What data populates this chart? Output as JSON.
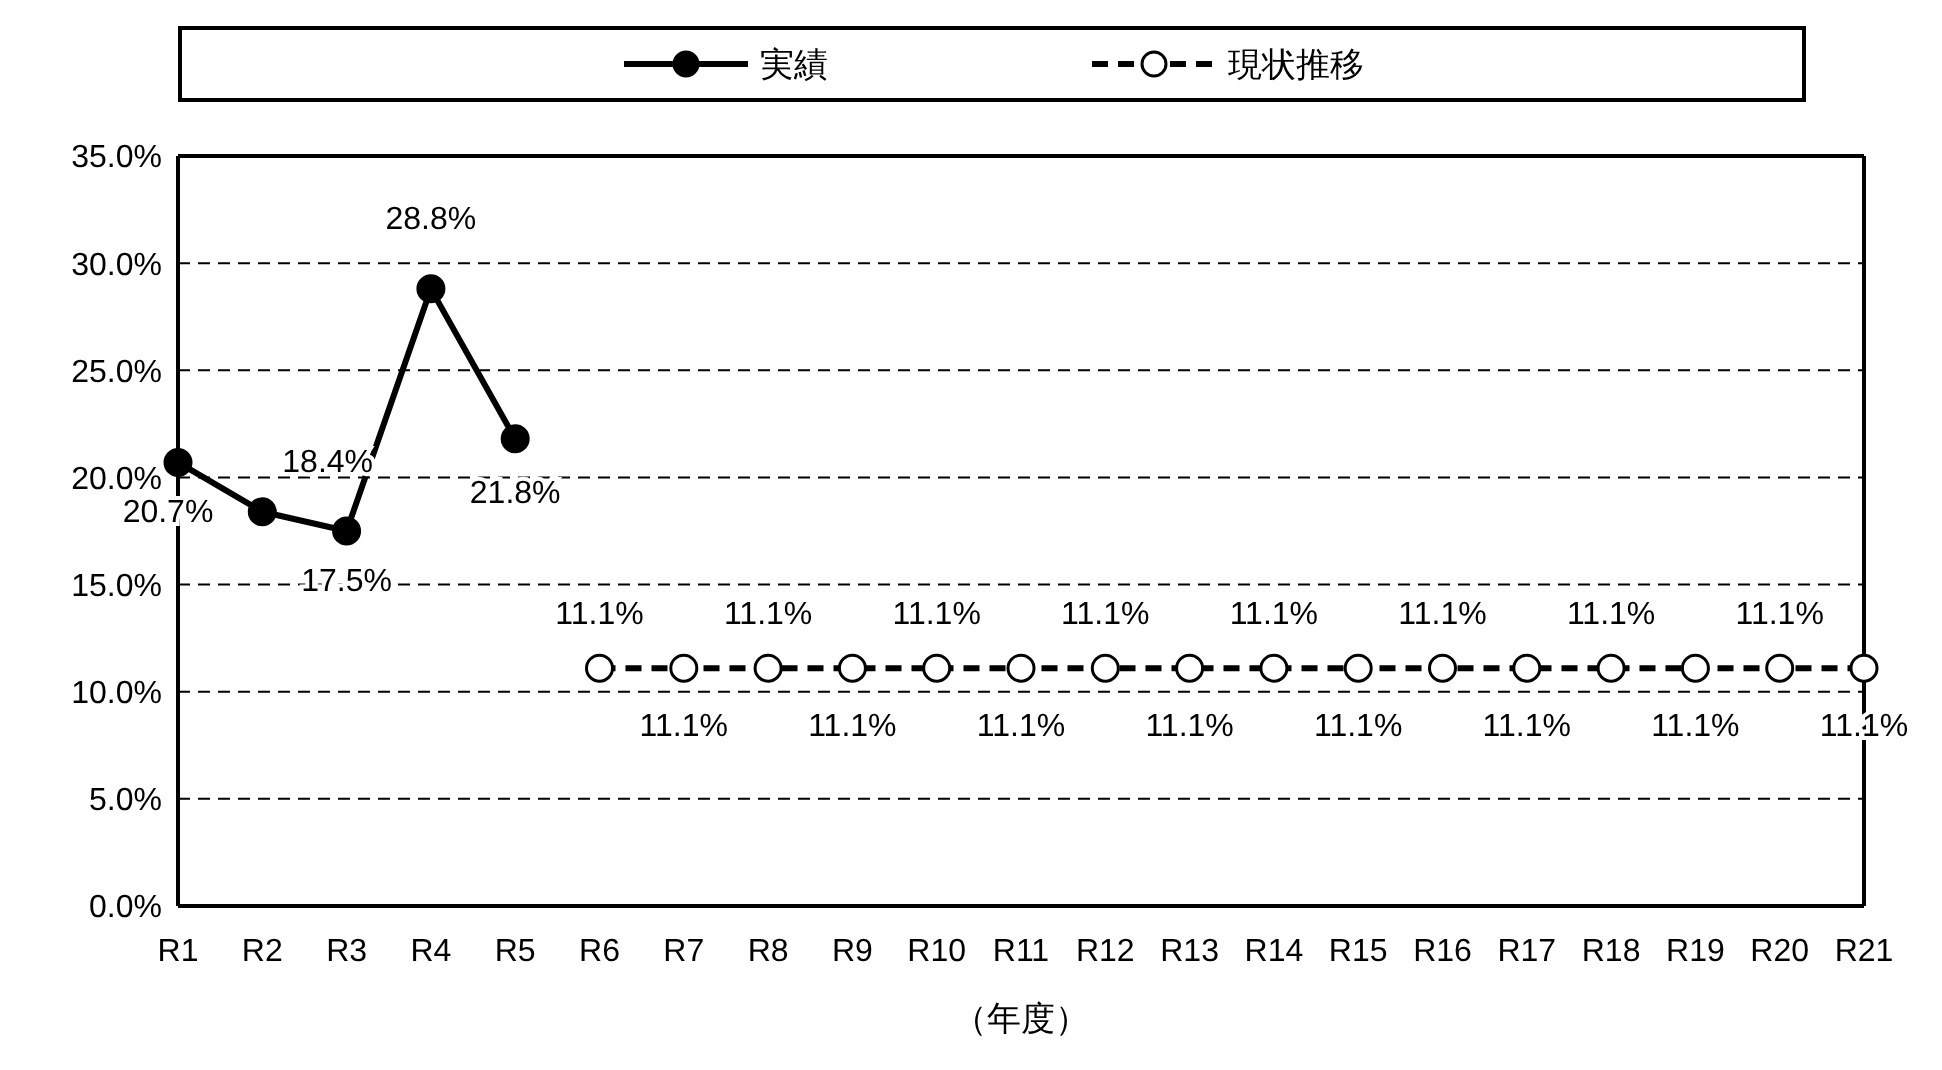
{
  "chart_data": {
    "type": "line",
    "xlabel": "（年度）",
    "categories": [
      "R1",
      "R2",
      "R3",
      "R4",
      "R5",
      "R6",
      "R7",
      "R8",
      "R9",
      "R10",
      "R11",
      "R12",
      "R13",
      "R14",
      "R15",
      "R16",
      "R17",
      "R18",
      "R19",
      "R20",
      "R21"
    ],
    "series": [
      {
        "name": "実績",
        "color": "#000000",
        "line_style": "solid",
        "values": [
          20.7,
          18.4,
          17.5,
          28.8,
          21.8,
          null,
          null,
          null,
          null,
          null,
          null,
          null,
          null,
          null,
          null,
          null,
          null,
          null,
          null,
          null,
          null
        ],
        "value_labels": [
          "20.7%",
          "18.4%",
          "17.5%",
          "28.8%",
          "21.8%",
          null,
          null,
          null,
          null,
          null,
          null,
          null,
          null,
          null,
          null,
          null,
          null,
          null,
          null,
          null,
          null
        ]
      },
      {
        "name": "現状推移",
        "color": "#000000",
        "line_style": "dashed",
        "values": [
          null,
          null,
          null,
          null,
          null,
          11.1,
          11.1,
          11.1,
          11.1,
          11.1,
          11.1,
          11.1,
          11.1,
          11.1,
          11.1,
          11.1,
          11.1,
          11.1,
          11.1,
          11.1,
          11.1
        ],
        "value_labels": [
          null,
          null,
          null,
          null,
          null,
          "11.1%",
          "11.1%",
          "11.1%",
          "11.1%",
          "11.1%",
          "11.1%",
          "11.1%",
          "11.1%",
          "11.1%",
          "11.1%",
          "11.1%",
          "11.1%",
          "11.1%",
          "11.1%",
          "11.1%",
          "11.1%"
        ]
      }
    ],
    "ylim": [
      0,
      35
    ],
    "yticks": [
      {
        "value": 0,
        "label": "0.0%"
      },
      {
        "value": 5,
        "label": "5.0%"
      },
      {
        "value": 10,
        "label": "10.0%"
      },
      {
        "value": 15,
        "label": "15.0%"
      },
      {
        "value": 20,
        "label": "20.0%"
      },
      {
        "value": 25,
        "label": "25.0%"
      },
      {
        "value": 30,
        "label": "30.0%"
      },
      {
        "value": 35,
        "label": "35.0%"
      }
    ],
    "grid": "y",
    "legend": "top",
    "marker": "circle"
  }
}
